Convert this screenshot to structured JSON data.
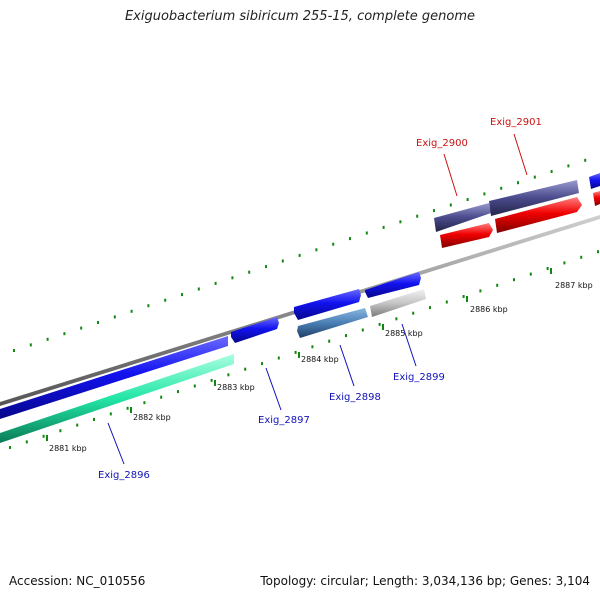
{
  "title": "Exiguobacterium sibiricum 255-15, complete genome",
  "accession": "Accession: NC_010556",
  "genome_info": "Topology: circular; Length: 3,034,136 bp; Genes: 3,104",
  "colors": {
    "forward_cds": "#1010e0",
    "reverse_cds_green": "#22e6a6",
    "reverse_cds_steel": "#4a7fb5",
    "reverse_cds_grey": "#c6c6c6",
    "reverse_cds_purple": "#4a4a8c",
    "reverse_cds_red": "#f00000",
    "backbone": "#8a8a8a",
    "tick": "#118811",
    "label_blue": "#1111bb",
    "label_red": "#cc1111"
  },
  "ticks": [
    {
      "label": "2881 kbp"
    },
    {
      "label": "2882 kbp"
    },
    {
      "label": "2883 kbp"
    },
    {
      "label": "2884 kbp"
    },
    {
      "label": "2885 kbp"
    },
    {
      "label": "2886 kbp"
    },
    {
      "label": "2887 kbp"
    }
  ],
  "genes": [
    {
      "name": "Exig_2896"
    },
    {
      "name": "Exig_2897"
    },
    {
      "name": "Exig_2898"
    },
    {
      "name": "Exig_2899"
    },
    {
      "name": "Exig_2900"
    },
    {
      "name": "Exig_2901"
    }
  ]
}
